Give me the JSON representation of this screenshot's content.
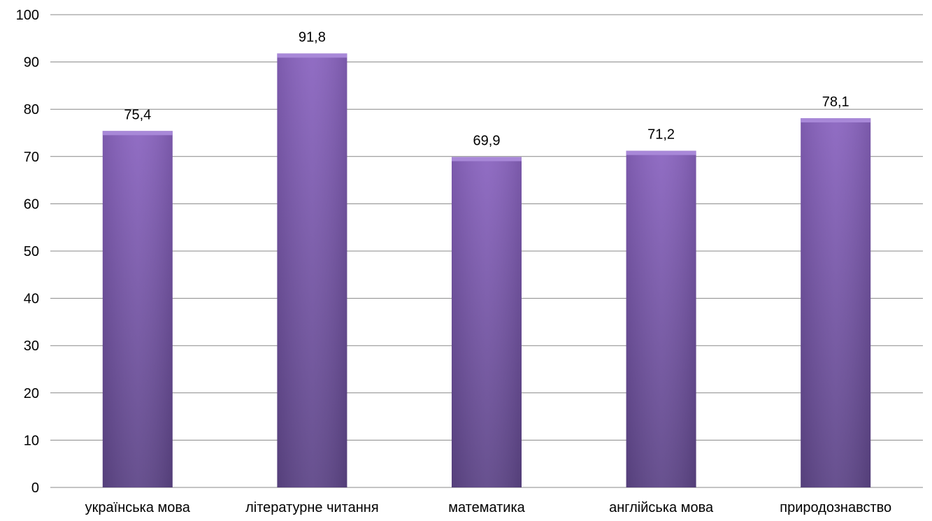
{
  "chart_data": {
    "type": "bar",
    "title": "",
    "xlabel": "",
    "ylabel": "",
    "categories": [
      "українська мова",
      "літературне читання",
      "математика",
      "англійська мова",
      "природознавство"
    ],
    "values": [
      75.4,
      91.8,
      69.9,
      71.2,
      78.1
    ],
    "value_labels": [
      "75,4",
      "91,8",
      "69,9",
      "71,2",
      "78,1"
    ],
    "ylim": [
      0,
      100
    ],
    "yticks": [
      0,
      10,
      20,
      30,
      40,
      50,
      60,
      70,
      80,
      90,
      100
    ],
    "ytick_labels": [
      "0",
      "10",
      "20",
      "30",
      "40",
      "50",
      "60",
      "70",
      "80",
      "90",
      "100"
    ],
    "grid": true,
    "legend": "none",
    "colors": {
      "bar_light": "#8a64c0",
      "bar_dark": "#5e4688",
      "bar_top": "#a888d8",
      "gridline": "#888888"
    }
  }
}
